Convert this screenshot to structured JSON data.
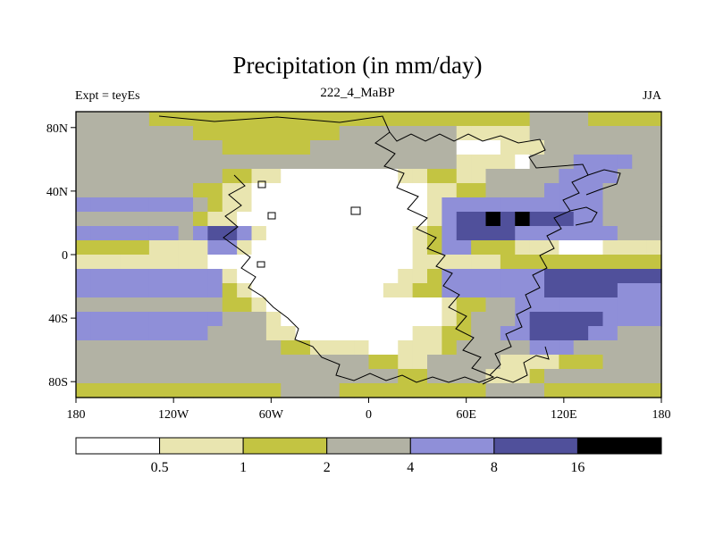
{
  "header": {
    "title": "Precipitation (in mm/day)",
    "subtitle": "222_4_MaBP",
    "experiment_label": "Expt = teyEs",
    "season_label": "JJA"
  },
  "chart_data": {
    "type": "heatmap",
    "title": "Precipitation (in mm/day)",
    "subtitle": "222_4_MaBP",
    "experiment": "Expt = teyEs",
    "season": "JJA",
    "units": "mm/day",
    "x_axis": {
      "ticks": [
        {
          "label": "180",
          "lon": -180
        },
        {
          "label": "120W",
          "lon": -120
        },
        {
          "label": "60W",
          "lon": -60
        },
        {
          "label": "0",
          "lon": 0
        },
        {
          "label": "60E",
          "lon": 60
        },
        {
          "label": "120E",
          "lon": 120
        },
        {
          "label": "180",
          "lon": 180
        }
      ]
    },
    "y_axis": {
      "ticks": [
        {
          "label": "80N",
          "lat": 80
        },
        {
          "label": "40N",
          "lat": 40
        },
        {
          "label": "0",
          "lat": 0
        },
        {
          "label": "40S",
          "lat": -40
        },
        {
          "label": "80S",
          "lat": -80
        }
      ]
    },
    "colorbar": {
      "boundary_labels": [
        "0.5",
        "1",
        "2",
        "4",
        "8",
        "16"
      ],
      "levels_mm_per_day": [
        0.5,
        1,
        2,
        4,
        8,
        16
      ],
      "colors": [
        "#ffffff",
        "#e9e5b0",
        "#c3c442",
        "#b2b2a4",
        "#8f8fd8",
        "#50509b",
        "#000000"
      ],
      "bin_meanings": [
        "<0.5",
        "0.5-1",
        "1-2",
        "2-4",
        "4-8",
        "8-16",
        ">16"
      ]
    },
    "grid": {
      "description": "Coarse 40x20 lon-lat grid of precipitation category indices (0..6) matching the colorbar bins, row 0 = 90N..81N, col 0 = 180W..171W.",
      "lon_range": [
        -180,
        180
      ],
      "lat_range": [
        90,
        -90
      ],
      "cols": 40,
      "rows": 20,
      "category_rows": [
        "3333322222222222222222222222222333322222",
        "3333333322222222223333333311111333333333",
        "3333333333222222333333333300011133333333",
        "3333333333333333333333333311110333444433",
        "3333333333221100000000112211333334444333",
        "3333333322110000000000001122333344443333",
        "4444444432110000000000001444444444443333",
        "3333333321100000000000001455656555443333",
        "4444444345541000000000012455554444444333",
        "2222211114410000000000012442221110001111",
        "1111111110000000000000011111122222222222",
        "4444444444100000000000112444444455555555",
        "4444444444210000000001122444444455555444",
        "3333333333221000000000000122334444444444",
        "4444444444333100000000000123334555554444",
        "4444444443333110000000011223344555544333",
        "3333333333333322111100111233333444333333",
        "3333333333333333333322113333311112223333",
        "3333333333333333333333223333111233333333",
        "2222222222222233332222222222333322222222"
      ]
    }
  }
}
